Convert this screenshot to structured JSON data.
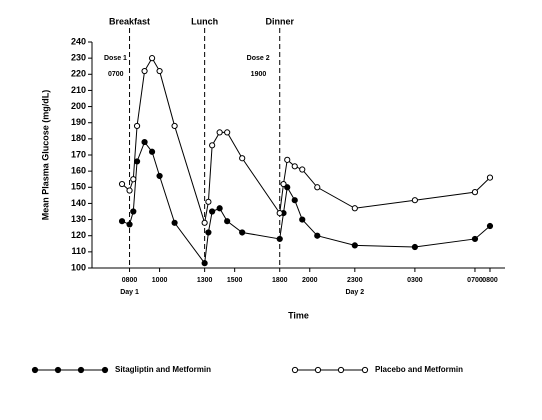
{
  "chart_data": {
    "type": "line",
    "xlabel": "Time",
    "ylabel": "Mean Plasma Glucose (mg/dL)",
    "xlim": [
      5.5,
      33
    ],
    "ylim": [
      100,
      240
    ],
    "yticks": [
      100,
      110,
      120,
      130,
      140,
      150,
      160,
      170,
      180,
      190,
      200,
      210,
      220,
      230,
      240
    ],
    "xticks": [
      {
        "value": 8,
        "label": "0800"
      },
      {
        "value": 10,
        "label": "1000"
      },
      {
        "value": 13,
        "label": "1300"
      },
      {
        "value": 15,
        "label": "1500"
      },
      {
        "value": 18,
        "label": "1800"
      },
      {
        "value": 20,
        "label": "2000"
      },
      {
        "value": 23,
        "label": "2300"
      },
      {
        "value": 27,
        "label": "0300"
      },
      {
        "value": 31,
        "label": "0700"
      },
      {
        "value": 32,
        "label": "0800"
      }
    ],
    "events": [
      {
        "label": "Breakfast",
        "x": 8
      },
      {
        "label": "Lunch",
        "x": 13
      },
      {
        "label": "Dinner",
        "x": 18
      }
    ],
    "day_labels": [
      {
        "label": "Day 1",
        "x": 8
      },
      {
        "label": "Day 2",
        "x": 23
      }
    ],
    "dose_labels": [
      {
        "label": "Dose 1",
        "time": "0700",
        "x": 6.3
      },
      {
        "label": "Dose 2",
        "time": "1900",
        "x": 15.8
      }
    ],
    "x": [
      7.5,
      8,
      8.25,
      8.5,
      9,
      9.5,
      10,
      11,
      13,
      13.25,
      13.5,
      14,
      14.5,
      15.5,
      18,
      18.25,
      18.5,
      19,
      19.5,
      20.5,
      23,
      27,
      31,
      32
    ],
    "series": [
      {
        "name": "Sitagliptin and Metformin",
        "color": "#000000",
        "marker": "filled",
        "values": [
          129,
          127,
          135,
          166,
          178,
          172,
          157,
          128,
          103,
          122,
          135,
          137,
          129,
          122,
          118,
          134,
          150,
          142,
          130,
          120,
          114,
          113,
          118,
          126
        ]
      },
      {
        "name": "Placebo and Metformin",
        "color": "#000000",
        "marker": "open",
        "values": [
          152,
          148,
          155,
          188,
          222,
          230,
          222,
          188,
          128,
          141,
          176,
          184,
          184,
          168,
          134,
          152,
          167,
          163,
          161,
          150,
          137,
          142,
          147,
          156
        ]
      }
    ]
  }
}
